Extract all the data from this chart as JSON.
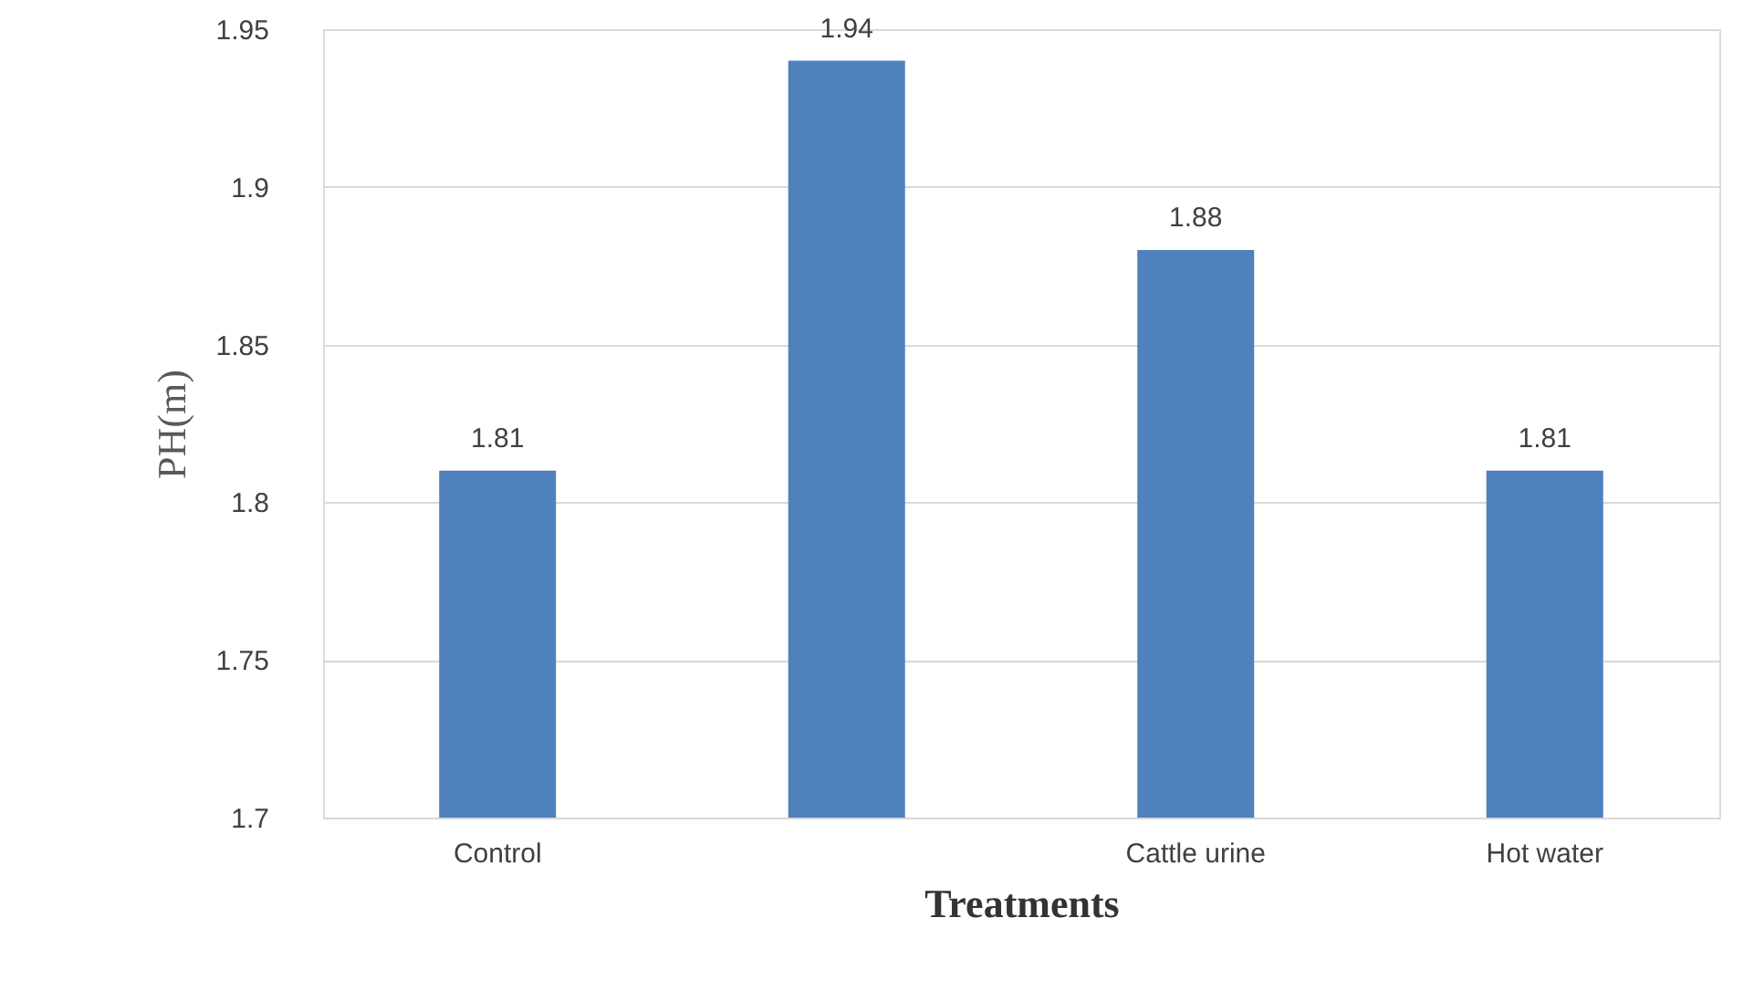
{
  "chart_data": {
    "type": "bar",
    "xlabel": "Treatments",
    "ylabel": "PH(m)",
    "categories": [
      "Control",
      null,
      "Cattle urine",
      "Hot water"
    ],
    "values": [
      1.81,
      1.94,
      1.88,
      1.81
    ],
    "color": "#4f81bd",
    "ylim": [
      1.7,
      1.95
    ],
    "yticks": [
      1.7,
      1.75,
      1.8,
      1.85,
      1.9,
      1.95
    ],
    "grid": "y",
    "data_labels": true
  }
}
